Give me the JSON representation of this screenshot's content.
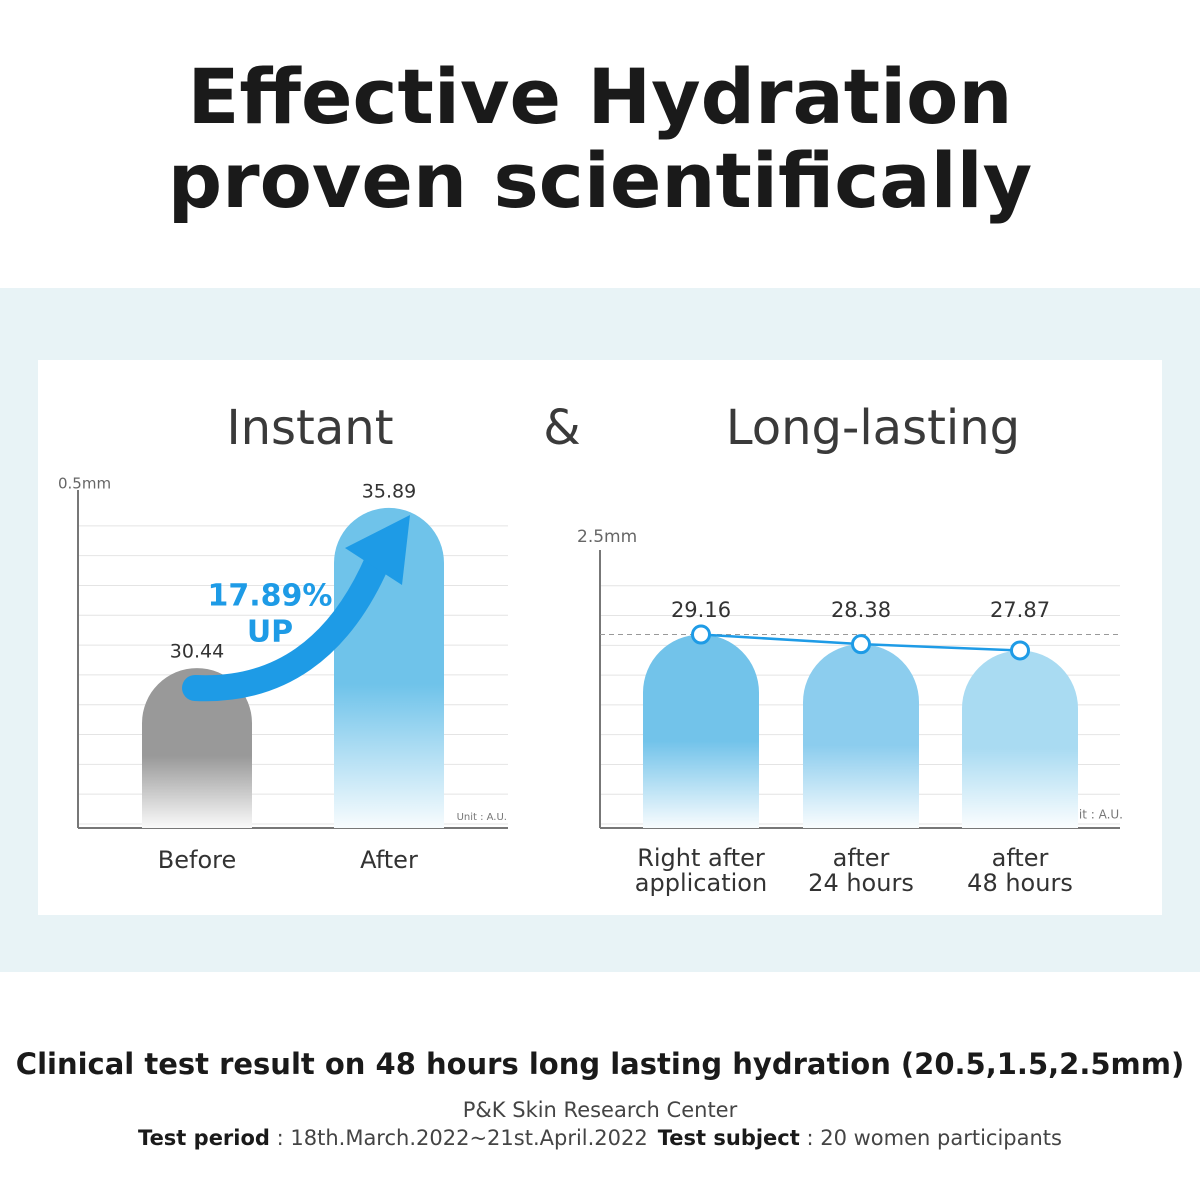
{
  "title_lines": [
    "Effective Hydration",
    "proven scientifically"
  ],
  "chart_heading": {
    "left": "Instant",
    "connector": "&",
    "right": "Long-lasting"
  },
  "chart_data": [
    {
      "type": "bar",
      "y_label": "0.5mm",
      "unit_note": "Unit : A.U.",
      "categories": [
        "Before",
        "After"
      ],
      "values": [
        30.44,
        35.89
      ],
      "colors": [
        "#999999",
        "#6fc3ea"
      ],
      "ylim": [
        25,
        36.5
      ],
      "annotation": [
        "17.89%",
        "UP"
      ],
      "annotation_color": "#1e9be6"
    },
    {
      "type": "bar_line",
      "y_label": "2.5mm",
      "unit_note": "Unit : A.U.",
      "categories": [
        "Right after\napplication",
        "after\n24 hours",
        "after\n48 hours"
      ],
      "values": [
        29.16,
        28.38,
        27.87
      ],
      "colors": [
        "#72c3ea",
        "#8ccdee",
        "#a9dbf2"
      ],
      "line_color": "#1e9be6",
      "ylim": [
        13.5,
        36
      ],
      "reference_line": true
    }
  ],
  "footer": {
    "headline": "Clinical test result on 48 hours long lasting hydration (20.5,1.5,2.5mm)",
    "source": "P&K Skin Research Center",
    "period_label": "Test period",
    "period": " : 18th.March.2022~21st.April.2022",
    "subject_label": "Test subject",
    "subject": " : 20 women participants"
  }
}
